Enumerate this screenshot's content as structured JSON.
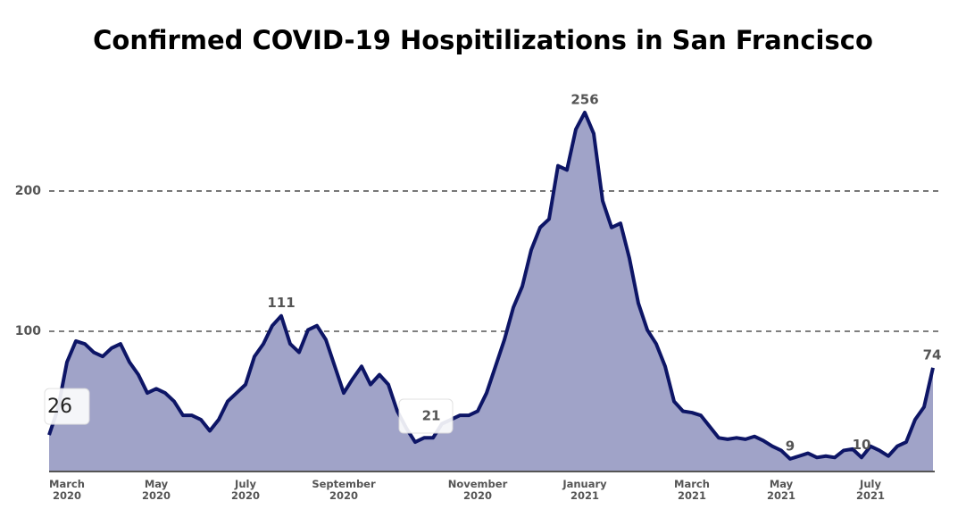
{
  "chart_data": {
    "type": "area",
    "title": "Confirmed COVID-19 Hospitilizations in San Francisco",
    "categories": [
      null,
      null,
      "March\n2020",
      null,
      null,
      null,
      null,
      null,
      null,
      null,
      null,
      null,
      "May\n2020",
      null,
      null,
      null,
      null,
      null,
      null,
      null,
      null,
      null,
      "July\n2020",
      null,
      null,
      null,
      null,
      null,
      null,
      null,
      null,
      null,
      null,
      "September\n2020",
      null,
      null,
      null,
      null,
      null,
      null,
      null,
      null,
      null,
      null,
      null,
      null,
      null,
      null,
      "November\n2020",
      null,
      null,
      null,
      null,
      null,
      null,
      null,
      null,
      null,
      null,
      null,
      "January\n2021",
      null,
      null,
      null,
      null,
      null,
      null,
      null,
      null,
      null,
      null,
      null,
      "March\n2021",
      null,
      null,
      null,
      null,
      null,
      null,
      null,
      null,
      null,
      "May\n2021",
      null,
      null,
      null,
      null,
      null,
      null,
      null,
      null,
      null,
      "July\n2021",
      null,
      null,
      null,
      null,
      null,
      null,
      null
    ],
    "values": [
      26,
      45,
      78,
      93,
      91,
      85,
      82,
      88,
      91,
      78,
      69,
      56,
      59,
      56,
      50,
      40,
      40,
      37,
      29,
      37,
      50,
      56,
      62,
      82,
      91,
      104,
      111,
      91,
      85,
      101,
      104,
      94,
      75,
      56,
      66,
      75,
      62,
      69,
      62,
      43,
      31,
      21,
      24,
      24,
      34,
      37,
      40,
      40,
      43,
      56,
      75,
      94,
      117,
      132,
      158,
      174,
      180,
      218,
      215,
      244,
      256,
      241,
      193,
      174,
      177,
      152,
      120,
      101,
      91,
      75,
      50,
      43,
      42,
      40,
      32,
      24,
      23,
      24,
      23,
      25,
      22,
      18,
      15,
      9,
      11,
      13,
      10,
      11,
      10,
      15,
      16,
      10,
      18,
      15,
      11,
      18,
      21,
      37,
      46,
      74
    ],
    "value_labels": [
      "26",
      null,
      null,
      null,
      null,
      null,
      null,
      null,
      null,
      null,
      null,
      null,
      null,
      null,
      null,
      null,
      null,
      null,
      null,
      null,
      null,
      null,
      null,
      null,
      null,
      null,
      "111",
      null,
      null,
      null,
      null,
      null,
      null,
      null,
      null,
      null,
      null,
      null,
      null,
      null,
      null,
      "21",
      null,
      null,
      null,
      null,
      null,
      null,
      null,
      null,
      null,
      null,
      null,
      null,
      null,
      null,
      null,
      null,
      null,
      null,
      "256",
      null,
      null,
      null,
      null,
      null,
      null,
      null,
      null,
      null,
      null,
      null,
      null,
      null,
      null,
      null,
      null,
      null,
      null,
      null,
      null,
      null,
      null,
      "9",
      null,
      null,
      null,
      null,
      null,
      null,
      null,
      "10",
      null,
      null,
      null,
      null,
      null,
      null,
      null,
      "74"
    ],
    "color": "#0d1566",
    "fill": "#a0a3c8",
    "ylim": [
      0,
      270
    ],
    "yticks": [
      100,
      200
    ],
    "grid": true
  }
}
